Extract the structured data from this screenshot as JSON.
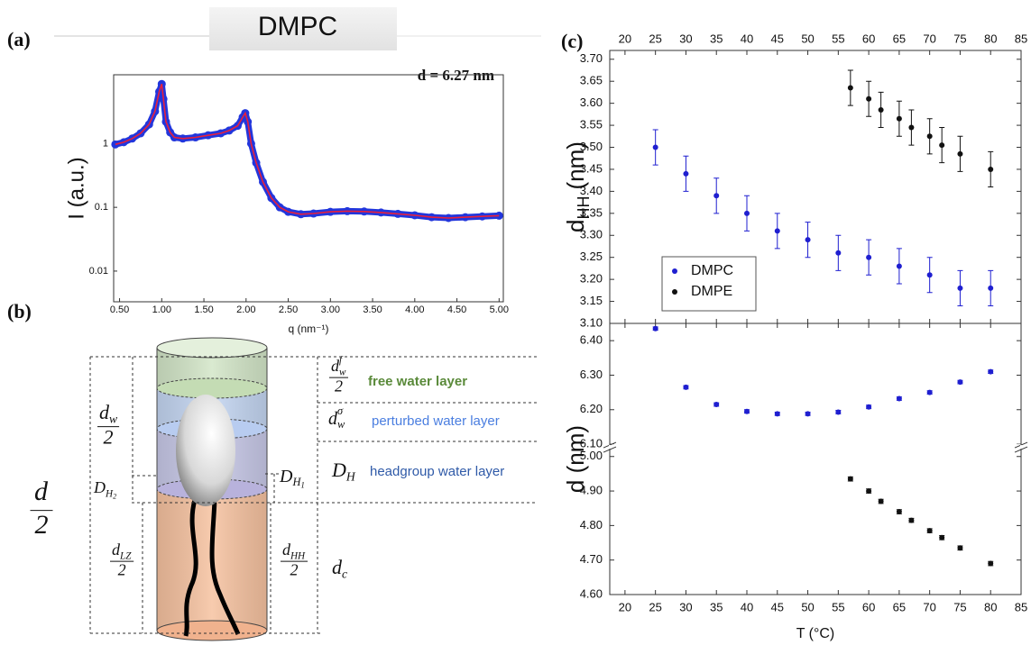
{
  "labels": [
    "(a)",
    "(b)",
    "(c)"
  ],
  "chart_data": [
    {
      "type": "saxs",
      "title": "DMPC",
      "annotation": "d = 6.27 nm",
      "xlabel": "q (nm⁻¹)",
      "ylabel": "I (a.u.)",
      "x": [
        0.45,
        0.55,
        0.65,
        0.75,
        0.85,
        0.92,
        0.97,
        1.0,
        1.02,
        1.05,
        1.1,
        1.15,
        1.25,
        1.4,
        1.55,
        1.7,
        1.8,
        1.9,
        1.96,
        1.99,
        2.02,
        2.06,
        2.12,
        2.2,
        2.3,
        2.4,
        2.5,
        2.65,
        2.8,
        3.0,
        3.2,
        3.4,
        3.6,
        3.8,
        4.0,
        4.2,
        4.4,
        4.6,
        4.8,
        5.0
      ],
      "series": [
        {
          "color": "#2236dc",
          "style": "points",
          "values": [
            0.97,
            1.05,
            1.2,
            1.45,
            2.0,
            3.2,
            6.5,
            8.6,
            5.0,
            2.2,
            1.5,
            1.25,
            1.2,
            1.25,
            1.35,
            1.45,
            1.6,
            1.9,
            2.6,
            3.0,
            2.2,
            1.0,
            0.5,
            0.25,
            0.14,
            0.1,
            0.085,
            0.078,
            0.08,
            0.085,
            0.087,
            0.086,
            0.083,
            0.079,
            0.075,
            0.07,
            0.068,
            0.07,
            0.072,
            0.074
          ]
        },
        {
          "color": "#e8203c",
          "style": "line",
          "values": [
            0.97,
            1.05,
            1.2,
            1.45,
            2.0,
            3.2,
            6.5,
            8.6,
            5.0,
            2.2,
            1.5,
            1.25,
            1.2,
            1.25,
            1.35,
            1.45,
            1.6,
            1.9,
            2.6,
            3.0,
            2.2,
            1.0,
            0.5,
            0.25,
            0.14,
            0.1,
            0.085,
            0.078,
            0.08,
            0.085,
            0.087,
            0.086,
            0.083,
            0.079,
            0.075,
            0.07,
            0.068,
            0.07,
            0.072,
            0.074
          ]
        }
      ],
      "xlim": [
        0.43,
        5.05
      ],
      "xticks": [
        {
          "value": 0.5,
          "label": "0.50"
        },
        {
          "value": 1,
          "label": "1.00"
        },
        {
          "value": 1.5,
          "label": "1.50"
        },
        {
          "value": 2,
          "label": "2.00"
        },
        {
          "value": 2.5,
          "label": "2.50"
        },
        {
          "value": 3,
          "label": "3.00"
        },
        {
          "value": 3.5,
          "label": "3.50"
        },
        {
          "value": 4,
          "label": "4.00"
        },
        {
          "value": 4.5,
          "label": "4.50"
        },
        {
          "value": 5,
          "label": "5.00"
        }
      ],
      "ylim": [
        0.0033,
        12
      ],
      "yticks": [
        0.01,
        0.1,
        1
      ],
      "ylog": true
    },
    {
      "type": "errorbar",
      "ylabel": {
        "main": "d",
        "sub": "HH",
        "unit": "(nm)"
      },
      "xaxis": "top",
      "legend": "lower left",
      "series": [
        {
          "name": "DMPC",
          "color": "#1f1fd0",
          "x": [
            25,
            30,
            35,
            40,
            45,
            50,
            55,
            60,
            65,
            70,
            75,
            80
          ],
          "values": [
            3.5,
            3.44,
            3.39,
            3.35,
            3.31,
            3.29,
            3.26,
            3.25,
            3.23,
            3.21,
            3.18,
            3.18
          ],
          "errors": [
            0.04,
            0.04,
            0.04,
            0.04,
            0.04,
            0.04,
            0.04,
            0.04,
            0.04,
            0.04,
            0.04,
            0.04
          ]
        },
        {
          "name": "DMPE",
          "color": "#111111",
          "x": [
            57,
            60,
            62,
            65,
            67,
            70,
            72,
            75,
            80
          ],
          "values": [
            3.635,
            3.61,
            3.585,
            3.565,
            3.545,
            3.525,
            3.505,
            3.485,
            3.45
          ],
          "errors": [
            0.04,
            0.04,
            0.04,
            0.04,
            0.04,
            0.04,
            0.04,
            0.04,
            0.04
          ]
        }
      ],
      "xlim": [
        17.5,
        85
      ],
      "xticks": [
        20,
        25,
        30,
        35,
        40,
        45,
        50,
        55,
        60,
        65,
        70,
        75,
        80,
        85
      ],
      "ylim": [
        3.1,
        3.72
      ],
      "yticks": [
        {
          "value": 3.1,
          "label": "3.10"
        },
        {
          "value": 3.15,
          "label": "3.15"
        },
        {
          "value": 3.2,
          "label": "3.20"
        },
        {
          "value": 3.25,
          "label": "3.25"
        },
        {
          "value": 3.3,
          "label": "3.30"
        },
        {
          "value": 3.35,
          "label": "3.35"
        },
        {
          "value": 3.4,
          "label": "3.40"
        },
        {
          "value": 3.45,
          "label": "3.45"
        },
        {
          "value": 3.5,
          "label": "3.50"
        },
        {
          "value": 3.55,
          "label": "3.55"
        },
        {
          "value": 3.6,
          "label": "3.60"
        },
        {
          "value": 3.65,
          "label": "3.65"
        },
        {
          "value": 3.7,
          "label": "3.70"
        }
      ]
    },
    {
      "type": "errorbar",
      "ylabel": "d (nm)",
      "xlabel": "T (°C)",
      "xaxis": "bottom",
      "series": [
        {
          "color": "#1f1fd0",
          "x": [
            25,
            30,
            35,
            40,
            45,
            50,
            55,
            60,
            65,
            70,
            75,
            80
          ],
          "values": [
            6.435,
            6.265,
            6.215,
            6.195,
            6.188,
            6.188,
            6.193,
            6.208,
            6.232,
            6.25,
            6.28,
            6.31
          ],
          "errors": [
            0.005,
            0.005,
            0.005,
            0.005,
            0.005,
            0.005,
            0.005,
            0.005,
            0.005,
            0.005,
            0.005,
            0.005
          ]
        },
        {
          "color": "#111111",
          "x": [
            57,
            60,
            62,
            65,
            67,
            70,
            72,
            75,
            80
          ],
          "values": [
            4.935,
            4.9,
            4.87,
            4.84,
            4.815,
            4.785,
            4.765,
            4.735,
            4.69
          ],
          "errors": [
            0.006,
            0.006,
            0.006,
            0.006,
            0.006,
            0.006,
            0.006,
            0.006,
            0.006
          ]
        }
      ],
      "xlim": [
        17.5,
        85
      ],
      "xticks": [
        20,
        25,
        30,
        35,
        40,
        45,
        50,
        55,
        60,
        65,
        70,
        75,
        80,
        85
      ],
      "y_segments": [
        {
          "ylim": [
            4.6,
            5.02
          ],
          "yticks": [
            {
              "value": 4.6,
              "label": "4.60"
            },
            {
              "value": 4.7,
              "label": "4.70"
            },
            {
              "value": 4.8,
              "label": "4.80"
            },
            {
              "value": 4.9,
              "label": "4.90"
            },
            {
              "value": 5,
              "label": "5.00"
            }
          ]
        },
        {
          "ylim": [
            6.1,
            6.45
          ],
          "yticks": [
            {
              "value": 6.1,
              "label": "6.10"
            },
            {
              "value": 6.2,
              "label": "6.20"
            },
            {
              "value": 6.3,
              "label": "6.30"
            },
            {
              "value": 6.4,
              "label": "6.40"
            }
          ]
        }
      ]
    }
  ],
  "diagram": {
    "layers": [
      "free water layer",
      "perturbed water layer",
      "headgroup water layer"
    ],
    "symbols": {
      "dwf": {
        "main": "d",
        "sub": "w",
        "sup": "f",
        "den": "2"
      },
      "dws": {
        "main": "d",
        "sub": "w",
        "sup": "σ"
      },
      "DH": {
        "main": "D",
        "sub": "H"
      },
      "dw": {
        "main": "d",
        "sub": "w",
        "den": "2"
      },
      "d": {
        "main": "d",
        "den": "2"
      },
      "DH2": {
        "main": "D",
        "sub": "H",
        "subsub": "2"
      },
      "DH1": {
        "main": "D",
        "sub": "H",
        "subsub": "1"
      },
      "dLZ": {
        "main": "d",
        "sub": "LZ",
        "den": "2"
      },
      "dHH": {
        "main": "d",
        "sub": "HH",
        "den": "2"
      },
      "dc": {
        "main": "d",
        "sub": "c"
      }
    }
  }
}
